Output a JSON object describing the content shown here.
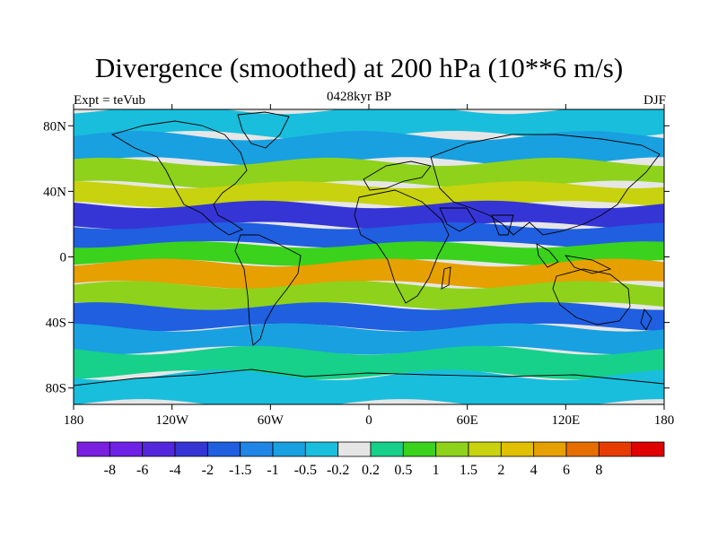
{
  "title": "Divergence (smoothed) at 200 hPa (10**6 m/s)",
  "left_string": "Expt = teVub",
  "center_string": "0428kyr BP",
  "right_string": "DJF",
  "lat_ticks": [
    {
      "value": 80,
      "label": "80N"
    },
    {
      "value": 40,
      "label": "40N"
    },
    {
      "value": 0,
      "label": "0"
    },
    {
      "value": -40,
      "label": "40S"
    },
    {
      "value": -80,
      "label": "80S"
    }
  ],
  "lon_ticks": [
    {
      "value": -180,
      "label": "180"
    },
    {
      "value": -120,
      "label": "120W"
    },
    {
      "value": -60,
      "label": "60W"
    },
    {
      "value": 0,
      "label": "0"
    },
    {
      "value": 60,
      "label": "60E"
    },
    {
      "value": 120,
      "label": "120E"
    },
    {
      "value": 180,
      "label": "180"
    }
  ],
  "colorbar": {
    "colors": [
      "#7a1ee0",
      "#6e22e6",
      "#5328dc",
      "#3535d6",
      "#1f5fe0",
      "#1f86e6",
      "#19a0e0",
      "#19bedc",
      "#e6e6e6",
      "#17d08a",
      "#3ad21c",
      "#8ed21c",
      "#c8d20e",
      "#e0c000",
      "#e6a000",
      "#e66e00",
      "#e63c00",
      "#e00000"
    ],
    "labels": [
      "-8",
      "-6",
      "-4",
      "-2",
      "-1.5",
      "-1",
      "-0.5",
      "-0.2",
      "0.2",
      "0.5",
      "1",
      "1.5",
      "2",
      "4",
      "6",
      "8"
    ]
  },
  "field_bands": [
    {
      "lat": 82,
      "level": -0.5
    },
    {
      "lat": 66,
      "level": -1
    },
    {
      "lat": 50,
      "level": 1
    },
    {
      "lat": 38,
      "level": 1.5
    },
    {
      "lat": 26,
      "level": -4
    },
    {
      "lat": 12,
      "level": -2
    },
    {
      "lat": 3,
      "level": 0.5
    },
    {
      "lat": -10,
      "level": 4
    },
    {
      "lat": -24,
      "level": 1
    },
    {
      "lat": -36,
      "level": -2
    },
    {
      "lat": -50,
      "level": -1
    },
    {
      "lat": -64,
      "level": 0.2
    },
    {
      "lat": -80,
      "level": -0.5
    }
  ]
}
